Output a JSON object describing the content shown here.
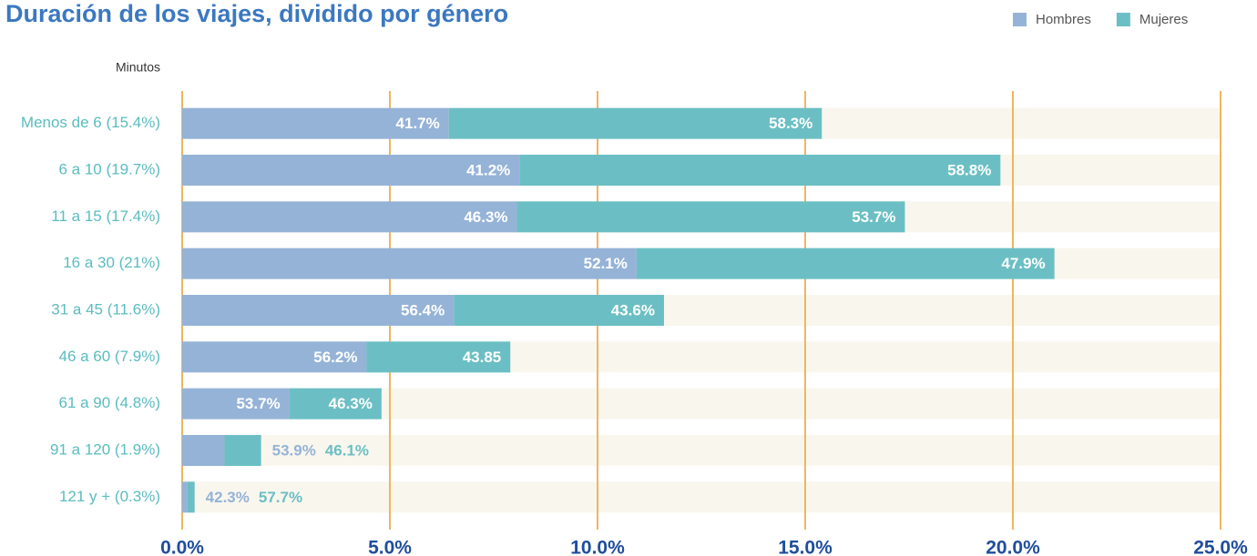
{
  "chart_data": {
    "type": "stacked-barh",
    "title": "Duración de los viajes, dividido por género",
    "y_label": "Minutos",
    "categories": [
      "Menos de 6 (15.4%)",
      "6 a 10 (19.7%)",
      "11 a 15 (17.4%)",
      "16 a 30 (21%)",
      "31 a 45 (11.6%)",
      "46 a 60 (7.9%)",
      "61 a 90 (4.8%)",
      "91 a 120 (1.9%)",
      "121 y + (0.3%)"
    ],
    "series": [
      {
        "name": "Hombres",
        "color": "#95b3d7",
        "values": [
          6.42,
          8.12,
          8.06,
          10.94,
          6.54,
          4.44,
          2.58,
          1.02,
          0.13
        ],
        "labels": [
          "41.7%",
          "41.2%",
          "46.3%",
          "52.1%",
          "56.4%",
          "56.2%",
          "53.7%",
          "53.9%",
          "42.3%"
        ]
      },
      {
        "name": "Mujeres",
        "color": "#6bbfc4",
        "values": [
          8.98,
          11.58,
          9.34,
          10.06,
          5.06,
          3.46,
          2.22,
          0.88,
          0.17
        ],
        "labels": [
          "58.3%",
          "58.8%",
          "53.7%",
          "47.9%",
          "43.6%",
          "43.85",
          "46.3%",
          "46.1%",
          "57.7%"
        ]
      }
    ],
    "xlim": [
      0,
      25
    ],
    "xticks": [
      {
        "value": 0,
        "label": "0.0%"
      },
      {
        "value": 5,
        "label": "5.0%"
      },
      {
        "value": 10,
        "label": "10.0%"
      },
      {
        "value": 15,
        "label": "15.0%"
      },
      {
        "value": 20,
        "label": "20.0%"
      },
      {
        "value": 25,
        "label": "25.0%"
      }
    ],
    "grid": true,
    "legend": "top-right"
  }
}
